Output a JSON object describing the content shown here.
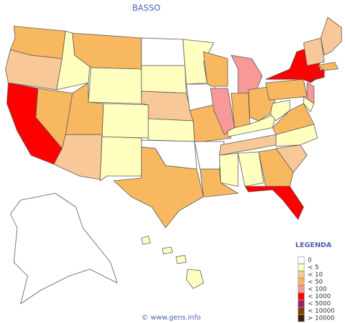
{
  "title": "BASSO",
  "legend": {
    "title": "LEGENDA",
    "items": [
      {
        "label": "0",
        "color": "#ffffff"
      },
      {
        "label": "< 5",
        "color": "#ffffc0"
      },
      {
        "label": "< 10",
        "color": "#f8c898"
      },
      {
        "label": "< 50",
        "color": "#f8b860"
      },
      {
        "label": "< 100",
        "color": "#f89898"
      },
      {
        "label": "< 1000",
        "color": "#ff0000"
      },
      {
        "label": "< 5000",
        "color": "#a0206a"
      },
      {
        "label": "< 10000",
        "color": "#804000"
      },
      {
        "label": "> 10000",
        "color": "#402000"
      }
    ]
  },
  "region_colors": [
    "#f8b860",
    "#f8c898",
    "#ff0000",
    "#f8b860",
    "#ffffc0",
    "#f8b860",
    "#ffffc0",
    "#f8b860",
    "#f8c898",
    "#ffffc0",
    "#ffffc0",
    "#ffffff",
    "#ffffc0",
    "#f8c898",
    "#ffffc0",
    "#ffffff",
    "#f8b860",
    "#ffffc0",
    "#ffffff",
    "#f8b860",
    "#ffffff",
    "#f8b860",
    "#f8b860",
    "#f89898",
    "#f89898",
    "#f8b860",
    "#f8b860",
    "#ffffc0",
    "#f8c898",
    "#ffffc0",
    "#ffffc0",
    "#f8b860",
    "#ff0000",
    "#f8c898",
    "#ffffc0",
    "#f8b860",
    "#ffffc0",
    "#f8b860",
    "#ff0000",
    "#f89898",
    "#ffffc0",
    "#ff0000",
    "#f8b860",
    "#f8c898",
    "#f8c898",
    "#ffffff",
    "#ffffc0",
    "#ffffc0",
    "#ffffc0",
    "#ffffc0"
  ],
  "footer": "© www.gens.info"
}
